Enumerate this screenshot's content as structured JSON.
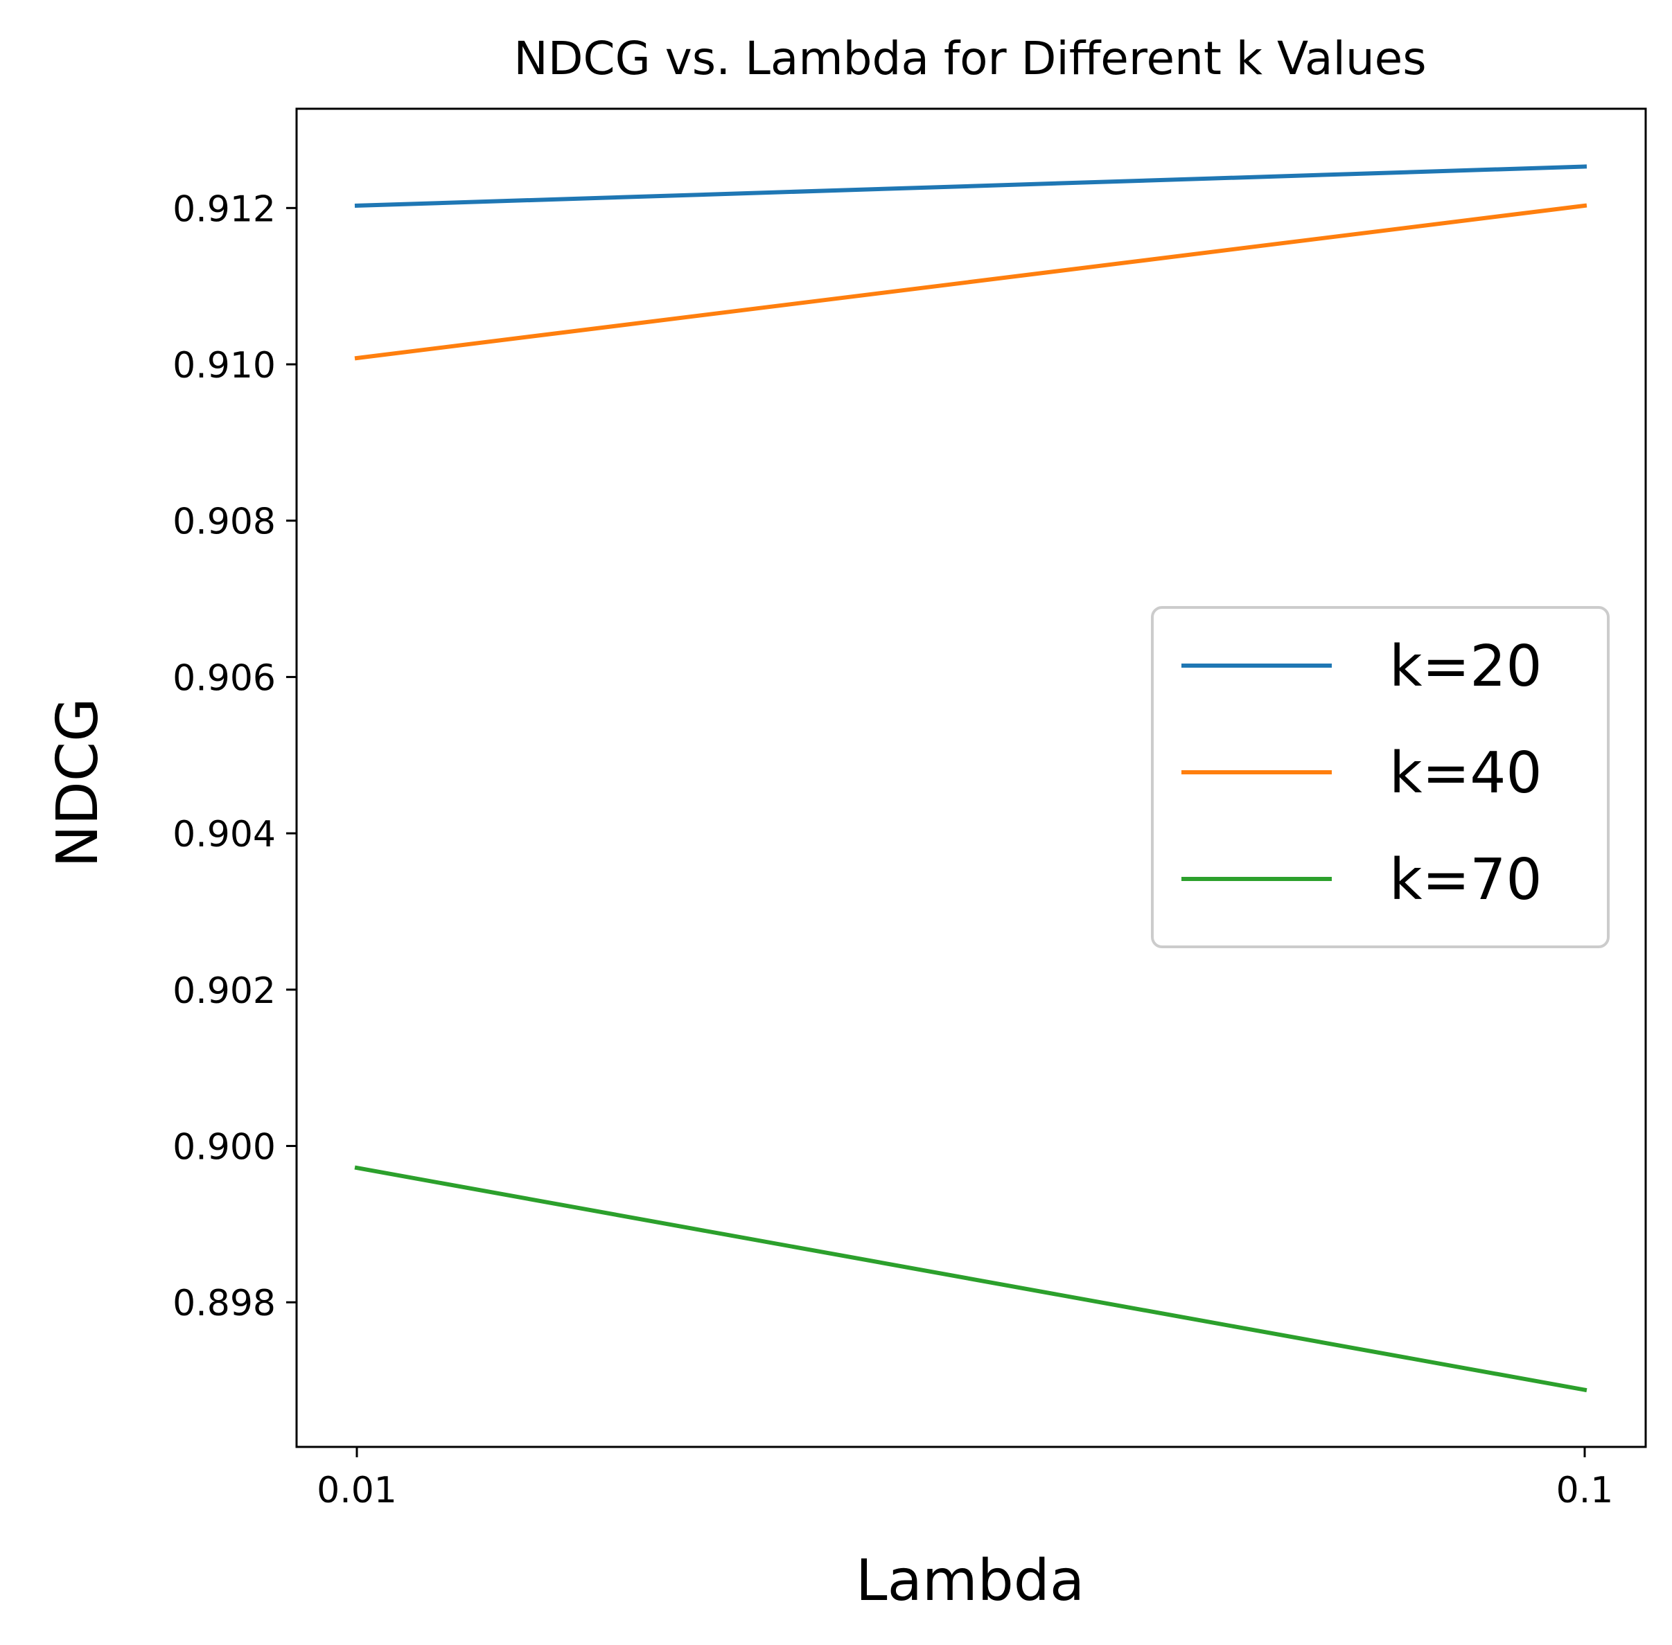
{
  "chart_data": {
    "type": "line",
    "title": "NDCG vs. Lambda for Different k Values",
    "xlabel": "Lambda",
    "ylabel": "NDCG",
    "x": [
      0.01,
      0.1
    ],
    "x_tick_labels": [
      "0.01",
      "0.1"
    ],
    "y_ticks": [
      0.898,
      0.9,
      0.902,
      0.904,
      0.906,
      0.908,
      0.91,
      0.912
    ],
    "y_tick_labels": [
      "0.898",
      "0.900",
      "0.902",
      "0.904",
      "0.906",
      "0.908",
      "0.910",
      "0.912"
    ],
    "ylim": [
      0.89615,
      0.91327
    ],
    "grid": false,
    "legend_position": "center-right",
    "series": [
      {
        "name": "k=20",
        "values": [
          0.91203,
          0.91253
        ],
        "color": "#1f77b4"
      },
      {
        "name": "k=40",
        "values": [
          0.91008,
          0.91203
        ],
        "color": "#ff7f0e"
      },
      {
        "name": "k=70",
        "values": [
          0.89972,
          0.89688
        ],
        "color": "#2ca02c"
      }
    ]
  }
}
